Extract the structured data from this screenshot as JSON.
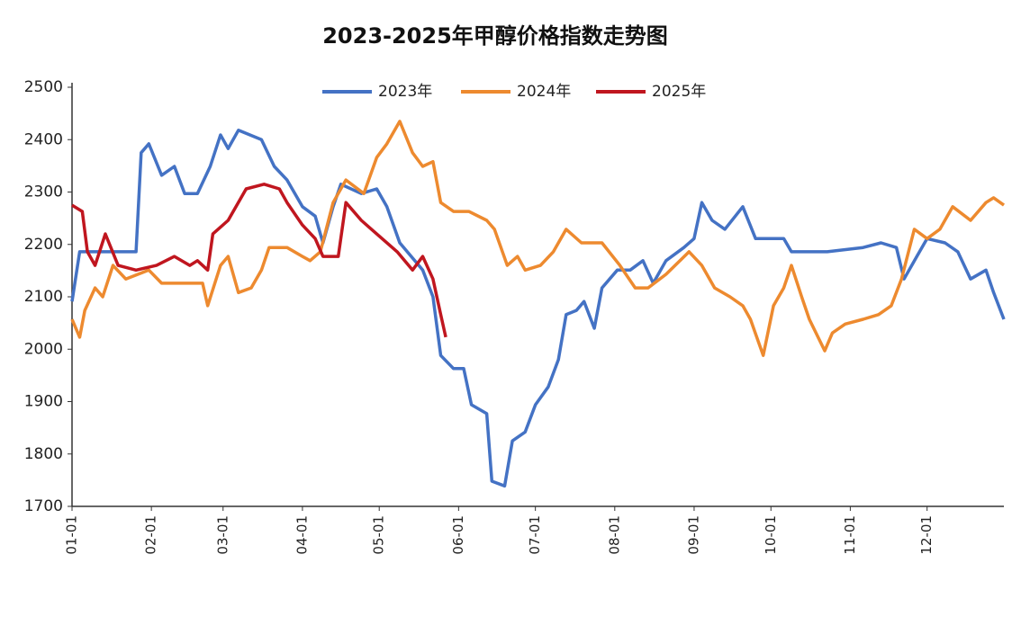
{
  "chart_data": {
    "type": "line",
    "title": "2023-2025年甲醇价格指数走势图",
    "xlim": [
      0,
      364
    ],
    "ylim": [
      1700,
      2500
    ],
    "yticks": [
      1700,
      1800,
      1900,
      2000,
      2100,
      2200,
      2300,
      2400,
      2500
    ],
    "xticks": [
      {
        "value": 0,
        "label": "01-01"
      },
      {
        "value": 31,
        "label": "02-01"
      },
      {
        "value": 59,
        "label": "03-01"
      },
      {
        "value": 90,
        "label": "04-01"
      },
      {
        "value": 120,
        "label": "05-01"
      },
      {
        "value": 151,
        "label": "06-01"
      },
      {
        "value": 181,
        "label": "07-01"
      },
      {
        "value": 212,
        "label": "08-01"
      },
      {
        "value": 243,
        "label": "09-01"
      },
      {
        "value": 273,
        "label": "10-01"
      },
      {
        "value": 304,
        "label": "11-01"
      },
      {
        "value": 334,
        "label": "12-01"
      }
    ],
    "series": [
      {
        "name": "2023年",
        "color": "#4472c4",
        "x": [
          0,
          3,
          5,
          25,
          27,
          30,
          35,
          40,
          44,
          49,
          54,
          58,
          61,
          65,
          74,
          79,
          84,
          90,
          95,
          98,
          102,
          105,
          113,
          119,
          123,
          128,
          137,
          141,
          144,
          149,
          153,
          156,
          162,
          164,
          169,
          172,
          177,
          181,
          186,
          190,
          193,
          197,
          200,
          204,
          207,
          213,
          218,
          223,
          227,
          232,
          239,
          243,
          246,
          250,
          255,
          262,
          267,
          278,
          281,
          295,
          309,
          316,
          322,
          325,
          330,
          334,
          341,
          346,
          351,
          357,
          360,
          364
        ],
        "values": [
          2091,
          2186,
          2186,
          2186,
          2375,
          2392,
          2332,
          2349,
          2297,
          2297,
          2349,
          2409,
          2383,
          2418,
          2400,
          2349,
          2323,
          2272,
          2254,
          2203,
          2272,
          2315,
          2297,
          2306,
          2272,
          2203,
          2151,
          2100,
          1988,
          1963,
          1963,
          1894,
          1877,
          1748,
          1739,
          1825,
          1842,
          1894,
          1928,
          1980,
          2066,
          2074,
          2091,
          2040,
          2117,
          2151,
          2151,
          2169,
          2126,
          2169,
          2194,
          2211,
          2280,
          2246,
          2229,
          2272,
          2211,
          2211,
          2186,
          2186,
          2194,
          2203,
          2194,
          2134,
          2177,
          2211,
          2203,
          2186,
          2134,
          2151,
          2108,
          2057
        ]
      },
      {
        "name": "2024年",
        "color": "#ed8a2f",
        "x": [
          0,
          3,
          5,
          9,
          12,
          16,
          21,
          30,
          35,
          42,
          51,
          53,
          58,
          61,
          65,
          70,
          74,
          77,
          84,
          90,
          93,
          97,
          102,
          107,
          114,
          119,
          123,
          128,
          133,
          137,
          141,
          144,
          149,
          155,
          162,
          165,
          170,
          174,
          177,
          183,
          188,
          193,
          199,
          207,
          214,
          220,
          225,
          232,
          241,
          246,
          251,
          257,
          262,
          265,
          270,
          274,
          278,
          281,
          285,
          288,
          294,
          297,
          302,
          309,
          315,
          320,
          324,
          329,
          334,
          339,
          344,
          351,
          357,
          360,
          364
        ],
        "values": [
          2057,
          2023,
          2074,
          2117,
          2100,
          2160,
          2134,
          2151,
          2126,
          2126,
          2126,
          2083,
          2160,
          2177,
          2108,
          2117,
          2151,
          2194,
          2194,
          2177,
          2169,
          2186,
          2280,
          2323,
          2297,
          2366,
          2392,
          2435,
          2375,
          2349,
          2358,
          2280,
          2263,
          2263,
          2246,
          2229,
          2160,
          2177,
          2151,
          2160,
          2186,
          2229,
          2203,
          2203,
          2160,
          2117,
          2117,
          2143,
          2186,
          2160,
          2117,
          2100,
          2083,
          2057,
          1988,
          2083,
          2117,
          2160,
          2100,
          2057,
          1997,
          2031,
          2048,
          2057,
          2066,
          2083,
          2134,
          2229,
          2211,
          2229,
          2272,
          2246,
          2280,
          2289,
          2275
        ]
      },
      {
        "name": "2025年",
        "color": "#c0161f",
        "x": [
          0,
          4,
          6,
          9,
          13,
          18,
          25,
          33,
          40,
          46,
          49,
          53,
          55,
          61,
          68,
          75,
          81,
          84,
          90,
          95,
          98,
          104,
          107,
          113,
          119,
          127,
          133,
          137,
          141,
          144,
          146
        ],
        "values": [
          2275,
          2263,
          2186,
          2160,
          2220,
          2160,
          2151,
          2160,
          2177,
          2160,
          2169,
          2151,
          2220,
          2246,
          2306,
          2315,
          2306,
          2280,
          2237,
          2211,
          2177,
          2177,
          2280,
          2246,
          2220,
          2186,
          2151,
          2177,
          2134,
          2066,
          2023
        ]
      }
    ]
  }
}
